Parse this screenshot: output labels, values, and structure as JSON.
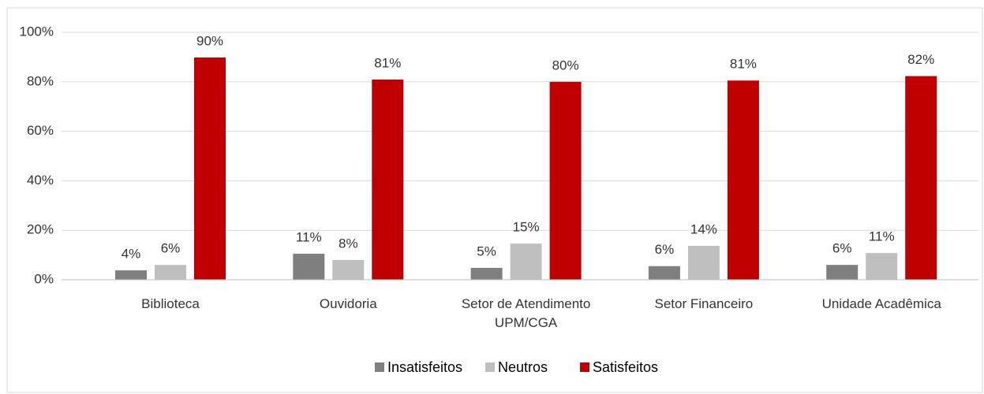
{
  "chart_data": {
    "type": "bar",
    "categories": [
      "Biblioteca",
      "Ouvidoria",
      "Setor de Atendimento UPM/CGA",
      "Setor Financeiro",
      "Unidade Acadêmica"
    ],
    "series": [
      {
        "name": "Insatisfeitos",
        "color": "#7f7f7f",
        "values": [
          3.8,
          10.5,
          4.8,
          5.5,
          6
        ],
        "value_labels": [
          "4%",
          "11%",
          "5%",
          "6%",
          "6%"
        ]
      },
      {
        "name": "Neutros",
        "color": "#bfbfbf",
        "values": [
          6,
          8,
          14.6,
          13.7,
          10.8
        ],
        "value_labels": [
          "6%",
          "8%",
          "15%",
          "14%",
          "11%"
        ]
      },
      {
        "name": "Satisfeitos",
        "color": "#c00000",
        "values": [
          89.8,
          80.9,
          80,
          80.5,
          82.3
        ],
        "value_labels": [
          "90%",
          "81%",
          "80%",
          "81%",
          "82%"
        ]
      }
    ],
    "ylim": [
      0,
      100
    ],
    "yticks": [
      {
        "value": 0,
        "label": "0%"
      },
      {
        "value": 20,
        "label": "20%"
      },
      {
        "value": 40,
        "label": "40%"
      },
      {
        "value": 60,
        "label": "60%"
      },
      {
        "value": 80,
        "label": "80%"
      },
      {
        "value": 100,
        "label": "100%"
      }
    ],
    "grid": true,
    "legend": "bottom"
  }
}
